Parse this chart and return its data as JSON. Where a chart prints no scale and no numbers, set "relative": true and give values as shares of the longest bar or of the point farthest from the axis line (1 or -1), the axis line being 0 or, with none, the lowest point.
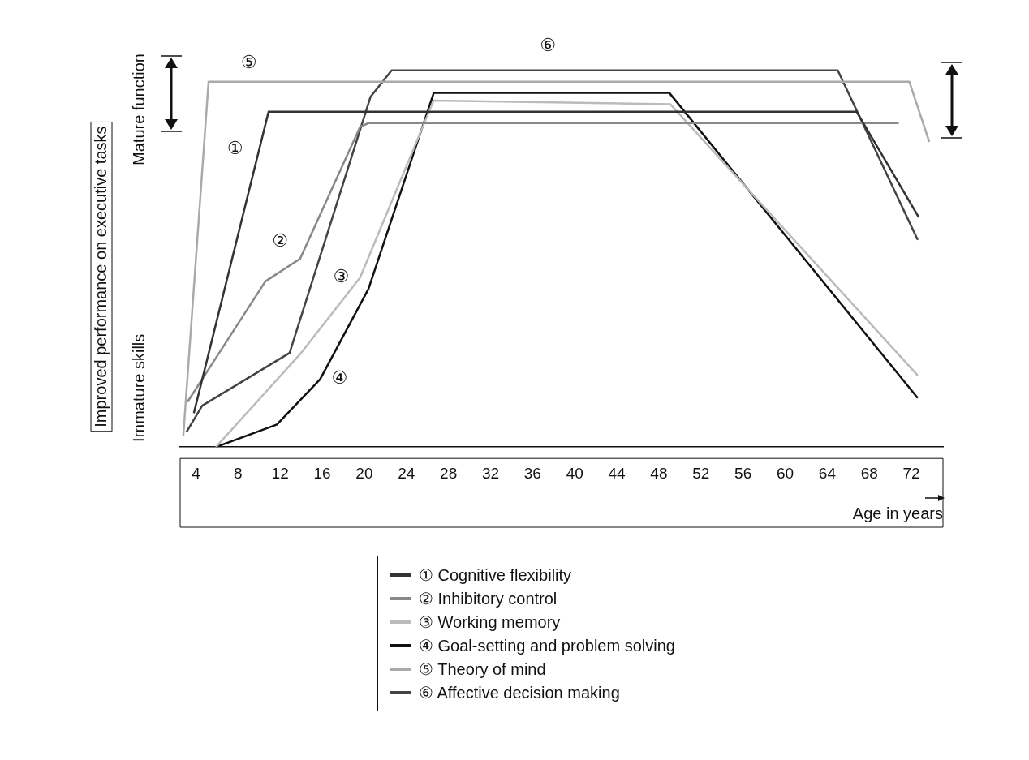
{
  "chart_data": {
    "type": "line",
    "relative": true,
    "xlabel": "Age in years",
    "ylabel": "Improved performance on executive tasks",
    "xlim": [
      2.5,
      75
    ],
    "xticks": [
      4,
      8,
      12,
      16,
      20,
      24,
      28,
      32,
      36,
      40,
      44,
      48,
      52,
      56,
      60,
      64,
      68,
      72
    ],
    "legend": "bottom",
    "grid": false,
    "marker": "none",
    "line_style": "solid",
    "series": [
      {
        "name": "① Cognitive flexibility",
        "color": "#333333",
        "x": [
          3.8,
          10.9,
          66.8,
          72.7
        ],
        "values": [
          0.09,
          0.89,
          0.89,
          0.61
        ]
      },
      {
        "name": "② Inhibitory control",
        "color": "#888888",
        "x": [
          3.2,
          10.6,
          13.9,
          19.6,
          20.4,
          70.8
        ],
        "values": [
          0.12,
          0.44,
          0.5,
          0.85,
          0.86,
          0.86
        ]
      },
      {
        "name": "③ Working memory",
        "color": "#bbbbbb",
        "x": [
          5.9,
          14.0,
          19.6,
          26.6,
          49.1,
          72.6
        ],
        "values": [
          0.0,
          0.25,
          0.45,
          0.92,
          0.91,
          0.19
        ]
      },
      {
        "name": "④ Goal-setting and problem solving",
        "color": "#111111",
        "x": [
          5.9,
          11.7,
          15.8,
          20.4,
          26.6,
          49.0,
          72.6
        ],
        "values": [
          0.0,
          0.06,
          0.18,
          0.42,
          0.94,
          0.94,
          0.13
        ]
      },
      {
        "name": "⑤ Theory of mind",
        "color": "#aaaaaa",
        "x": [
          2.8,
          5.2,
          71.8,
          73.7
        ],
        "values": [
          0.03,
          0.97,
          0.97,
          0.81
        ]
      },
      {
        "name": "⑥ Affective decision making",
        "color": "#444444",
        "x": [
          3.1,
          4.6,
          12.9,
          20.6,
          22.6,
          65.0,
          72.6
        ],
        "values": [
          0.04,
          0.11,
          0.25,
          0.93,
          1.0,
          1.0,
          0.55
        ]
      }
    ],
    "annotations": [
      "Mature function",
      "Immature skills",
      "①",
      "②",
      "③",
      "④",
      "⑤",
      "⑥"
    ]
  }
}
